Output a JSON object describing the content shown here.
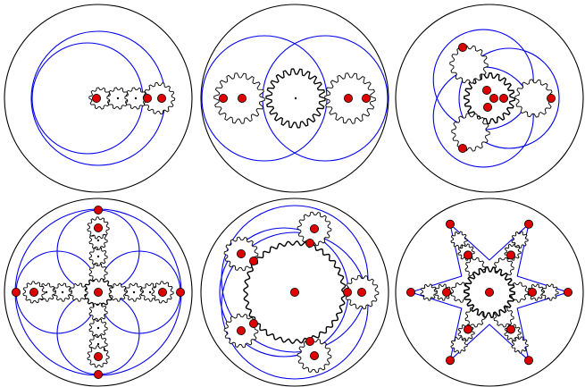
{
  "figure": {
    "panel_count": 6,
    "colors": {
      "boundary": "#000000",
      "orbit": "#0000ee",
      "gear_outline": "#000000",
      "gear_fill": "#ffffff",
      "marker_fill": "#dd0000",
      "marker_stroke": "#000000"
    },
    "panels": [
      {
        "name": "panel-1",
        "kind": "single-arm-gear-train"
      },
      {
        "name": "panel-2",
        "kind": "two-planet-gears"
      },
      {
        "name": "panel-3",
        "kind": "three-planet-gears"
      },
      {
        "name": "panel-4",
        "kind": "four-arm-gear-trains"
      },
      {
        "name": "panel-5",
        "kind": "large-sun-with-planets"
      },
      {
        "name": "panel-6",
        "kind": "six-point-star-linkage"
      }
    ]
  }
}
